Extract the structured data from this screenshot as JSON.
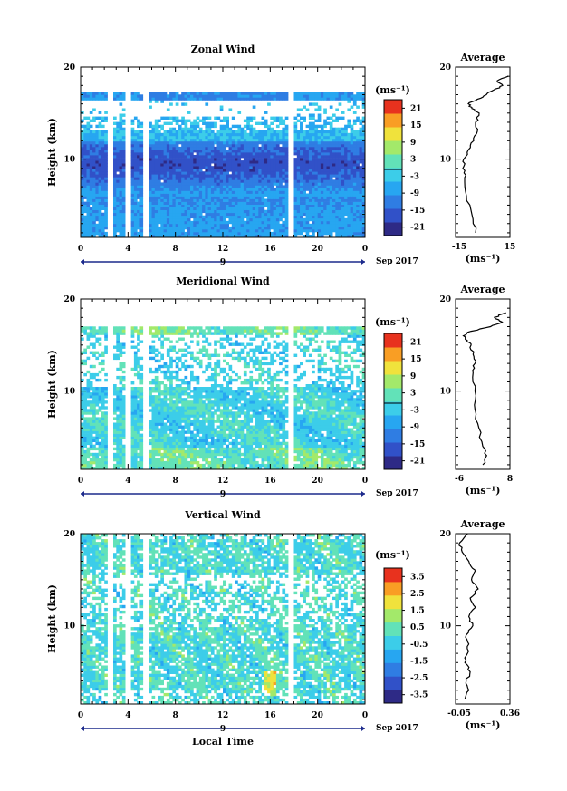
{
  "figure": {
    "time_axis_label": "Local Time",
    "time_ticks": [
      "0",
      "4",
      "8",
      "12",
      "16",
      "20",
      "0"
    ],
    "day_label": "9",
    "month_label": "Sep 2017",
    "avg_title": "Average",
    "height_label": "Height (km)",
    "height_ticks": [
      "20",
      "10"
    ]
  },
  "chart_data": [
    {
      "type": "heatmap",
      "title": "Zonal Wind",
      "xlabel": "",
      "ylabel": "Height (km)",
      "xlim": [
        0,
        24
      ],
      "ylim": [
        1.5,
        20
      ],
      "colorbar_unit": "(ms⁻¹)",
      "colorbar_ticks": [
        "21",
        "15",
        "9",
        "3",
        "-3",
        "-9",
        "-15",
        "-21"
      ],
      "colorbar_range": [
        -24,
        24
      ],
      "colormap": [
        "#2e2a86",
        "#3151c8",
        "#2f7de3",
        "#27a6f1",
        "#3ccde9",
        "#62e2b8",
        "#a3e96a",
        "#f0e23c",
        "#f99e24",
        "#e8321e"
      ],
      "gap_hours": [
        [
          2.3,
          2.7
        ],
        [
          3.7,
          4.2
        ],
        [
          5.3,
          5.8
        ],
        [
          17.6,
          17.9
        ]
      ],
      "profile_heights_km": [
        2,
        4,
        6,
        8,
        9,
        10,
        11,
        12,
        13,
        14,
        15,
        15.5,
        16,
        16.5,
        17,
        17.5,
        18,
        18.5,
        19
      ],
      "profile_values": [
        -4,
        -6,
        -9,
        -10,
        -11,
        -10.5,
        -8,
        -5,
        -3,
        -4,
        -2,
        -6,
        -8,
        -3,
        2,
        6,
        11,
        8,
        14
      ],
      "avg_xlim": [
        -15,
        15
      ],
      "avg_ticks": [
        "-15",
        "15"
      ],
      "avg_unit": "(ms⁻¹)"
    },
    {
      "type": "heatmap",
      "title": "Meridional Wind",
      "xlabel": "",
      "ylabel": "Height (km)",
      "xlim": [
        0,
        24
      ],
      "ylim": [
        1.5,
        20
      ],
      "colorbar_unit": "(ms⁻¹)",
      "colorbar_ticks": [
        "21",
        "15",
        "9",
        "3",
        "-3",
        "-9",
        "-15",
        "-21"
      ],
      "colorbar_range": [
        -24,
        24
      ],
      "colormap": [
        "#2e2a86",
        "#3151c8",
        "#2f7de3",
        "#27a6f1",
        "#3ccde9",
        "#62e2b8",
        "#a3e96a",
        "#f0e23c",
        "#f99e24",
        "#e8321e"
      ],
      "gap_hours": [
        [
          2.3,
          2.7
        ],
        [
          3.7,
          4.2
        ],
        [
          5.3,
          5.8
        ],
        [
          17.6,
          17.9
        ]
      ],
      "profile_heights_km": [
        2,
        3,
        4,
        6,
        8,
        10,
        12,
        13,
        14,
        15,
        15.5,
        16,
        16.5,
        17,
        17.5,
        18,
        18.5
      ],
      "profile_values": [
        1,
        2,
        1,
        0,
        -1,
        -1,
        -1.5,
        -1,
        -1.5,
        -2,
        -3,
        -4,
        -2,
        3,
        6,
        4,
        7
      ],
      "avg_xlim": [
        -6,
        8
      ],
      "avg_ticks": [
        "-6",
        "8"
      ],
      "avg_unit": "(ms⁻¹)"
    },
    {
      "type": "heatmap",
      "title": "Vertical Wind",
      "xlabel": "Local Time",
      "ylabel": "Height (km)",
      "xlim": [
        0,
        24
      ],
      "ylim": [
        1.5,
        20
      ],
      "colorbar_unit": "(ms⁻¹)",
      "colorbar_ticks": [
        "3.5",
        "2.5",
        "1.5",
        "0.5",
        "-0.5",
        "-1.5",
        "-2.5",
        "-3.5"
      ],
      "colorbar_range": [
        -4,
        4
      ],
      "colormap": [
        "#2e2a86",
        "#3151c8",
        "#2f7de3",
        "#27a6f1",
        "#3ccde9",
        "#62e2b8",
        "#a3e96a",
        "#f0e23c",
        "#f99e24",
        "#e8321e"
      ],
      "gap_hours": [
        [
          2.3,
          2.7
        ],
        [
          3.7,
          4.2
        ],
        [
          5.3,
          5.8
        ],
        [
          17.6,
          17.9
        ]
      ],
      "profile_heights_km": [
        2,
        3,
        4,
        5,
        6,
        7,
        8,
        9,
        10,
        11,
        12,
        13,
        14,
        15,
        16,
        17,
        18,
        19,
        20
      ],
      "profile_values": [
        0.02,
        0.05,
        0.03,
        0.06,
        0.02,
        0.04,
        0.05,
        0.03,
        0.08,
        0.05,
        0.1,
        0.06,
        0.12,
        0.07,
        0.1,
        0.05,
        0.0,
        -0.02,
        0.04
      ],
      "avg_xlim": [
        -0.05,
        0.36
      ],
      "avg_ticks": [
        "-0.05",
        "0.36"
      ],
      "avg_unit": "(ms⁻¹)"
    }
  ]
}
